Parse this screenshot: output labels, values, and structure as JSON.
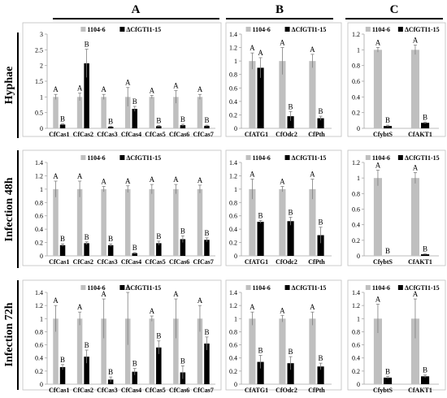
{
  "columns": [
    "A",
    "B",
    "C"
  ],
  "rows": [
    "Hyphae",
    "Infection 48h",
    "Infection 72h"
  ],
  "colors": {
    "wt": "#bfbfbf",
    "mut": "#000000",
    "error": "#7f7f7f",
    "axis": "#a6a6a6",
    "frame": "#bfbfbf"
  },
  "chart_data": [
    {
      "id": "A1",
      "type": "bar",
      "categories": [
        "CfCas1",
        "CfCas2",
        "CfCas3",
        "CfCas4",
        "CfCas5",
        "CfCas6",
        "CfCas7"
      ],
      "ylim": [
        0,
        3
      ],
      "ticks": [
        "0",
        "0.5",
        "1",
        "1.5",
        "2",
        "2.5",
        "3"
      ],
      "series": [
        {
          "name": "1104-6",
          "values": [
            1,
            1,
            1,
            1,
            1,
            1,
            1
          ],
          "errors": [
            0.08,
            0.12,
            0.08,
            0.3,
            0.05,
            0.2,
            0.08
          ],
          "letters": [
            "A",
            "A",
            "A",
            "A",
            "A",
            "A",
            "A"
          ]
        },
        {
          "name": "ΔCfGTI1-15",
          "values": [
            0.12,
            2.07,
            0.05,
            0.62,
            0.07,
            0.1,
            0.08
          ],
          "errors": [
            0.02,
            0.45,
            0.02,
            0.08,
            0.02,
            0.03,
            0.02
          ],
          "letters": [
            "B",
            "B",
            "B",
            "B",
            "B",
            "B",
            "B"
          ]
        }
      ]
    },
    {
      "id": "B1",
      "type": "bar",
      "categories": [
        "CfATG1",
        "CfOdc2",
        "CfPth"
      ],
      "ylim": [
        0,
        1.4
      ],
      "ticks": [
        "0",
        "0.2",
        "0.4",
        "0.6",
        "0.8",
        "1",
        "1.2",
        "1.4"
      ],
      "series": [
        {
          "name": "1104-6",
          "values": [
            1,
            1,
            1
          ],
          "errors": [
            0.12,
            0.2,
            0.1
          ],
          "letters": [
            "A",
            "A",
            "A"
          ]
        },
        {
          "name": "ΔCfGTI1-15",
          "values": [
            0.9,
            0.18,
            0.15
          ],
          "errors": [
            0.15,
            0.07,
            0.03
          ],
          "letters": [
            "A",
            "B",
            "B"
          ]
        }
      ]
    },
    {
      "id": "C1",
      "type": "bar",
      "categories": [
        "CfybtS",
        "CfAKT1"
      ],
      "ylim": [
        0,
        1.2
      ],
      "ticks": [
        "0",
        "0.2",
        "0.4",
        "0.6",
        "0.8",
        "1",
        "1.2"
      ],
      "series": [
        {
          "name": "1104-6",
          "values": [
            1,
            1
          ],
          "errors": [
            0.03,
            0.06
          ],
          "letters": [
            "A",
            "A"
          ]
        },
        {
          "name": "ΔCfGTI1-15",
          "values": [
            0.03,
            0.07
          ],
          "errors": [
            0.01,
            0.01
          ],
          "letters": [
            "B",
            "B"
          ]
        }
      ]
    },
    {
      "id": "A2",
      "type": "bar",
      "categories": [
        "CfCas1",
        "CfCas2",
        "CfCas3",
        "CfCas4",
        "CfCas5",
        "CfCas6",
        "CfCas7"
      ],
      "ylim": [
        0,
        1.4
      ],
      "ticks": [
        "0",
        "0.2",
        "0.4",
        "0.6",
        "0.8",
        "1",
        "1.2",
        "1.4"
      ],
      "series": [
        {
          "name": "1104-6",
          "values": [
            1,
            1,
            1,
            1,
            1,
            1,
            1
          ],
          "errors": [
            0.12,
            0.12,
            0.04,
            0.05,
            0.07,
            0.07,
            0.06
          ],
          "letters": [
            "A",
            "A",
            "A",
            "A",
            "A",
            "A",
            "A"
          ]
        },
        {
          "name": "ΔCfGTI1-15",
          "values": [
            0.16,
            0.19,
            0.16,
            0.04,
            0.19,
            0.25,
            0.24
          ],
          "errors": [
            0.02,
            0.02,
            0.02,
            0.01,
            0.03,
            0.05,
            0.03
          ],
          "letters": [
            "B",
            "B",
            "B",
            "B",
            "B",
            "B",
            "B"
          ]
        }
      ]
    },
    {
      "id": "B2",
      "type": "bar",
      "categories": [
        "CfATG1",
        "CfOdc2",
        "CfPth"
      ],
      "ylim": [
        0,
        1.4
      ],
      "ticks": [
        "0",
        "0.2",
        "0.4",
        "0.6",
        "0.8",
        "1",
        "1.2",
        "1.4"
      ],
      "series": [
        {
          "name": "1104-6",
          "values": [
            1,
            1,
            1
          ],
          "errors": [
            0.15,
            0.04,
            0.15
          ],
          "letters": [
            "A",
            "A",
            "A"
          ]
        },
        {
          "name": "ΔCfGTI1-15",
          "values": [
            0.51,
            0.52,
            0.31
          ],
          "errors": [
            0.02,
            0.06,
            0.12
          ],
          "letters": [
            "B",
            "B",
            "B"
          ]
        }
      ]
    },
    {
      "id": "C2",
      "type": "bar",
      "categories": [
        "CfybtS",
        "CfAKT1"
      ],
      "ylim": [
        0,
        1.2
      ],
      "ticks": [
        "0",
        "0.2",
        "0.4",
        "0.6",
        "0.8",
        "1",
        "1.2"
      ],
      "series": [
        {
          "name": "1104-6",
          "values": [
            1,
            1
          ],
          "errors": [
            0.1,
            0.07
          ],
          "letters": [
            "A",
            "A"
          ]
        },
        {
          "name": "ΔCfGTI1-15",
          "values": [
            0,
            0.02
          ],
          "errors": [
            0,
            0.005
          ],
          "letters": [
            "B",
            "B"
          ]
        }
      ]
    },
    {
      "id": "A3",
      "type": "bar",
      "categories": [
        "CfCas1",
        "CfCas2",
        "CfCas3",
        "CfCas4",
        "CfCas5",
        "CfCas6",
        "CfCas7"
      ],
      "ylim": [
        0,
        1.4
      ],
      "ticks": [
        "0",
        "0.2",
        "0.4",
        "0.6",
        "0.8",
        "1",
        "1.2",
        "1.4"
      ],
      "series": [
        {
          "name": "1104-6",
          "values": [
            1,
            1,
            1,
            1,
            1,
            1,
            1
          ],
          "errors": [
            0.2,
            0.1,
            0.3,
            0.4,
            0.04,
            0.3,
            0.2
          ],
          "letters": [
            "A",
            "A",
            "A",
            "A",
            "A",
            "A",
            "A"
          ]
        },
        {
          "name": "ΔCfGTI1-15",
          "values": [
            0.26,
            0.42,
            0.07,
            0.19,
            0.56,
            0.18,
            0.62
          ],
          "errors": [
            0.04,
            0.1,
            0.04,
            0.05,
            0.1,
            0.1,
            0.1
          ],
          "letters": [
            "B",
            "B",
            "B",
            "B",
            "B",
            "B",
            "B"
          ]
        }
      ]
    },
    {
      "id": "B3",
      "type": "bar",
      "categories": [
        "CfATG1",
        "CfOdc2",
        "CfPth"
      ],
      "ylim": [
        0,
        1.4
      ],
      "ticks": [
        "0",
        "0.2",
        "0.4",
        "0.6",
        "0.8",
        "1",
        "1.2",
        "1.4"
      ],
      "series": [
        {
          "name": "1104-6",
          "values": [
            1,
            1,
            1
          ],
          "errors": [
            0.1,
            0.05,
            0.1
          ],
          "letters": [
            "A",
            "A",
            "A"
          ]
        },
        {
          "name": "ΔCfGTI1-15",
          "values": [
            0.34,
            0.32,
            0.27
          ],
          "errors": [
            0.1,
            0.1,
            0.05
          ],
          "letters": [
            "B",
            "B",
            "B"
          ]
        }
      ]
    },
    {
      "id": "C3",
      "type": "bar",
      "categories": [
        "CfybtS",
        "CfAKT1"
      ],
      "ylim": [
        0,
        1.4
      ],
      "ticks": [
        "0",
        "0.2",
        "0.4",
        "0.6",
        "0.8",
        "1",
        "1.2",
        "1.4"
      ],
      "series": [
        {
          "name": "1104-6",
          "values": [
            1,
            1
          ],
          "errors": [
            0.22,
            0.3
          ],
          "letters": [
            "A",
            "A"
          ]
        },
        {
          "name": "ΔCfGTI1-15",
          "values": [
            0.1,
            0.12
          ],
          "errors": [
            0.02,
            0.02
          ],
          "letters": [
            "B",
            "B"
          ]
        }
      ]
    }
  ]
}
